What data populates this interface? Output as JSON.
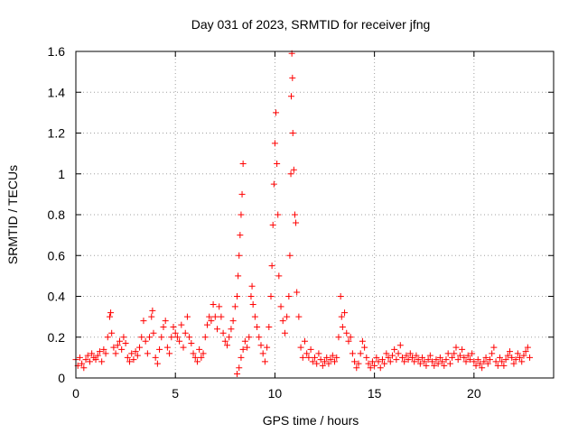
{
  "chart_data": {
    "type": "scatter",
    "title": "Day 031 of 2023, SRMTID for receiver jfng",
    "xlabel": "GPS time / hours",
    "ylabel": "SRMTID / TECUs",
    "xlim": [
      0,
      24
    ],
    "ylim": [
      0,
      1.6
    ],
    "xticks": [
      0,
      5,
      10,
      15,
      20
    ],
    "xtick_labels": [
      "0",
      "5",
      "10",
      "15",
      "20"
    ],
    "yticks": [
      0,
      0.2,
      0.4,
      0.6,
      0.8,
      1.0,
      1.2,
      1.4,
      1.6
    ],
    "ytick_labels": [
      "0",
      "0.2",
      "0.4",
      "0.6",
      "0.8",
      "1",
      "1.2",
      "1.4",
      "1.6"
    ],
    "grid": true,
    "marker": "+",
    "marker_color": "#ff0000",
    "series": [
      {
        "name": "SRMTID",
        "points": [
          [
            0.0,
            0.09
          ],
          [
            0.1,
            0.06
          ],
          [
            0.2,
            0.1
          ],
          [
            0.3,
            0.07
          ],
          [
            0.4,
            0.05
          ],
          [
            0.5,
            0.09
          ],
          [
            0.6,
            0.11
          ],
          [
            0.7,
            0.08
          ],
          [
            0.8,
            0.12
          ],
          [
            0.9,
            0.1
          ],
          [
            1.0,
            0.09
          ],
          [
            1.1,
            0.11
          ],
          [
            1.2,
            0.13
          ],
          [
            1.3,
            0.08
          ],
          [
            1.4,
            0.14
          ],
          [
            1.5,
            0.12
          ],
          [
            1.6,
            0.2
          ],
          [
            1.7,
            0.3
          ],
          [
            1.75,
            0.32
          ],
          [
            1.8,
            0.22
          ],
          [
            1.9,
            0.15
          ],
          [
            2.0,
            0.12
          ],
          [
            2.1,
            0.16
          ],
          [
            2.2,
            0.18
          ],
          [
            2.3,
            0.14
          ],
          [
            2.4,
            0.2
          ],
          [
            2.5,
            0.17
          ],
          [
            2.6,
            0.1
          ],
          [
            2.7,
            0.08
          ],
          [
            2.8,
            0.12
          ],
          [
            2.9,
            0.09
          ],
          [
            3.0,
            0.13
          ],
          [
            3.1,
            0.11
          ],
          [
            3.2,
            0.15
          ],
          [
            3.3,
            0.2
          ],
          [
            3.4,
            0.28
          ],
          [
            3.5,
            0.18
          ],
          [
            3.6,
            0.12
          ],
          [
            3.7,
            0.2
          ],
          [
            3.8,
            0.3
          ],
          [
            3.85,
            0.33
          ],
          [
            3.9,
            0.22
          ],
          [
            4.0,
            0.1
          ],
          [
            4.1,
            0.07
          ],
          [
            4.2,
            0.14
          ],
          [
            4.3,
            0.2
          ],
          [
            4.4,
            0.25
          ],
          [
            4.5,
            0.28
          ],
          [
            4.6,
            0.15
          ],
          [
            4.7,
            0.12
          ],
          [
            4.8,
            0.2
          ],
          [
            4.9,
            0.25
          ],
          [
            5.0,
            0.22
          ],
          [
            5.1,
            0.2
          ],
          [
            5.2,
            0.18
          ],
          [
            5.3,
            0.26
          ],
          [
            5.4,
            0.15
          ],
          [
            5.5,
            0.22
          ],
          [
            5.6,
            0.3
          ],
          [
            5.7,
            0.2
          ],
          [
            5.8,
            0.17
          ],
          [
            5.9,
            0.12
          ],
          [
            6.0,
            0.1
          ],
          [
            6.1,
            0.08
          ],
          [
            6.2,
            0.14
          ],
          [
            6.3,
            0.1
          ],
          [
            6.4,
            0.12
          ],
          [
            6.5,
            0.2
          ],
          [
            6.6,
            0.26
          ],
          [
            6.7,
            0.3
          ],
          [
            6.8,
            0.28
          ],
          [
            6.9,
            0.36
          ],
          [
            7.0,
            0.3
          ],
          [
            7.1,
            0.24
          ],
          [
            7.2,
            0.35
          ],
          [
            7.3,
            0.3
          ],
          [
            7.4,
            0.22
          ],
          [
            7.5,
            0.18
          ],
          [
            7.6,
            0.16
          ],
          [
            7.7,
            0.2
          ],
          [
            7.8,
            0.24
          ],
          [
            7.9,
            0.28
          ],
          [
            8.0,
            0.35
          ],
          [
            8.1,
            0.4
          ],
          [
            8.15,
            0.5
          ],
          [
            8.2,
            0.6
          ],
          [
            8.25,
            0.7
          ],
          [
            8.3,
            0.8
          ],
          [
            8.35,
            0.9
          ],
          [
            8.4,
            1.05
          ],
          [
            8.1,
            0.02
          ],
          [
            8.2,
            0.05
          ],
          [
            8.3,
            0.1
          ],
          [
            8.4,
            0.14
          ],
          [
            8.5,
            0.18
          ],
          [
            8.6,
            0.15
          ],
          [
            8.7,
            0.2
          ],
          [
            8.8,
            0.4
          ],
          [
            8.85,
            0.45
          ],
          [
            8.9,
            0.36
          ],
          [
            9.0,
            0.3
          ],
          [
            9.1,
            0.25
          ],
          [
            9.2,
            0.2
          ],
          [
            9.3,
            0.16
          ],
          [
            9.4,
            0.12
          ],
          [
            9.5,
            0.08
          ],
          [
            9.6,
            0.15
          ],
          [
            9.7,
            0.25
          ],
          [
            9.8,
            0.4
          ],
          [
            9.85,
            0.55
          ],
          [
            9.9,
            0.75
          ],
          [
            9.95,
            0.95
          ],
          [
            10.0,
            1.15
          ],
          [
            10.05,
            1.3
          ],
          [
            10.1,
            1.05
          ],
          [
            10.15,
            0.8
          ],
          [
            10.2,
            0.5
          ],
          [
            10.3,
            0.35
          ],
          [
            10.4,
            0.28
          ],
          [
            10.5,
            0.22
          ],
          [
            10.6,
            0.3
          ],
          [
            10.7,
            0.4
          ],
          [
            10.75,
            0.6
          ],
          [
            10.8,
            1.0
          ],
          [
            10.82,
            1.38
          ],
          [
            10.85,
            1.59
          ],
          [
            10.88,
            1.47
          ],
          [
            10.9,
            1.2
          ],
          [
            10.95,
            1.02
          ],
          [
            11.0,
            0.8
          ],
          [
            11.05,
            0.76
          ],
          [
            11.1,
            0.42
          ],
          [
            11.2,
            0.3
          ],
          [
            11.3,
            0.15
          ],
          [
            11.4,
            0.1
          ],
          [
            11.5,
            0.18
          ],
          [
            11.6,
            0.12
          ],
          [
            11.7,
            0.1
          ],
          [
            11.8,
            0.14
          ],
          [
            11.9,
            0.08
          ],
          [
            12.0,
            0.1
          ],
          [
            12.1,
            0.07
          ],
          [
            12.2,
            0.12
          ],
          [
            12.3,
            0.09
          ],
          [
            12.4,
            0.06
          ],
          [
            12.5,
            0.08
          ],
          [
            12.6,
            0.1
          ],
          [
            12.7,
            0.07
          ],
          [
            12.8,
            0.09
          ],
          [
            12.9,
            0.11
          ],
          [
            13.0,
            0.08
          ],
          [
            13.1,
            0.1
          ],
          [
            13.2,
            0.2
          ],
          [
            13.3,
            0.4
          ],
          [
            13.35,
            0.3
          ],
          [
            13.4,
            0.25
          ],
          [
            13.5,
            0.32
          ],
          [
            13.6,
            0.22
          ],
          [
            13.7,
            0.18
          ],
          [
            13.8,
            0.2
          ],
          [
            13.9,
            0.12
          ],
          [
            14.0,
            0.08
          ],
          [
            14.1,
            0.05
          ],
          [
            14.2,
            0.07
          ],
          [
            14.3,
            0.12
          ],
          [
            14.4,
            0.18
          ],
          [
            14.5,
            0.15
          ],
          [
            14.6,
            0.1
          ],
          [
            14.7,
            0.07
          ],
          [
            14.8,
            0.05
          ],
          [
            14.9,
            0.08
          ],
          [
            15.0,
            0.06
          ],
          [
            15.1,
            0.1
          ],
          [
            15.2,
            0.08
          ],
          [
            15.3,
            0.05
          ],
          [
            15.4,
            0.09
          ],
          [
            15.5,
            0.07
          ],
          [
            15.6,
            0.12
          ],
          [
            15.7,
            0.1
          ],
          [
            15.8,
            0.08
          ],
          [
            15.9,
            0.11
          ],
          [
            16.0,
            0.14
          ],
          [
            16.1,
            0.09
          ],
          [
            16.2,
            0.12
          ],
          [
            16.3,
            0.16
          ],
          [
            16.4,
            0.1
          ],
          [
            16.5,
            0.08
          ],
          [
            16.6,
            0.11
          ],
          [
            16.7,
            0.09
          ],
          [
            16.8,
            0.12
          ],
          [
            16.9,
            0.1
          ],
          [
            17.0,
            0.08
          ],
          [
            17.1,
            0.11
          ],
          [
            17.2,
            0.09
          ],
          [
            17.3,
            0.07
          ],
          [
            17.4,
            0.1
          ],
          [
            17.5,
            0.08
          ],
          [
            17.6,
            0.06
          ],
          [
            17.7,
            0.09
          ],
          [
            17.8,
            0.11
          ],
          [
            17.9,
            0.08
          ],
          [
            18.0,
            0.06
          ],
          [
            18.1,
            0.09
          ],
          [
            18.2,
            0.07
          ],
          [
            18.3,
            0.1
          ],
          [
            18.4,
            0.08
          ],
          [
            18.5,
            0.06
          ],
          [
            18.6,
            0.09
          ],
          [
            18.7,
            0.12
          ],
          [
            18.8,
            0.07
          ],
          [
            18.9,
            0.1
          ],
          [
            19.0,
            0.12
          ],
          [
            19.1,
            0.15
          ],
          [
            19.2,
            0.09
          ],
          [
            19.3,
            0.11
          ],
          [
            19.4,
            0.14
          ],
          [
            19.5,
            0.1
          ],
          [
            19.6,
            0.08
          ],
          [
            19.7,
            0.11
          ],
          [
            19.8,
            0.09
          ],
          [
            19.9,
            0.12
          ],
          [
            20.0,
            0.08
          ],
          [
            20.1,
            0.06
          ],
          [
            20.2,
            0.09
          ],
          [
            20.3,
            0.07
          ],
          [
            20.4,
            0.05
          ],
          [
            20.5,
            0.08
          ],
          [
            20.6,
            0.1
          ],
          [
            20.7,
            0.07
          ],
          [
            20.8,
            0.09
          ],
          [
            20.9,
            0.12
          ],
          [
            21.0,
            0.15
          ],
          [
            21.1,
            0.08
          ],
          [
            21.2,
            0.06
          ],
          [
            21.3,
            0.1
          ],
          [
            21.4,
            0.08
          ],
          [
            21.5,
            0.06
          ],
          [
            21.6,
            0.09
          ],
          [
            21.7,
            0.11
          ],
          [
            21.8,
            0.13
          ],
          [
            21.9,
            0.1
          ],
          [
            22.0,
            0.07
          ],
          [
            22.1,
            0.09
          ],
          [
            22.2,
            0.12
          ],
          [
            22.3,
            0.1
          ],
          [
            22.4,
            0.08
          ],
          [
            22.5,
            0.11
          ],
          [
            22.6,
            0.13
          ],
          [
            22.7,
            0.15
          ],
          [
            22.8,
            0.1
          ]
        ]
      }
    ]
  }
}
